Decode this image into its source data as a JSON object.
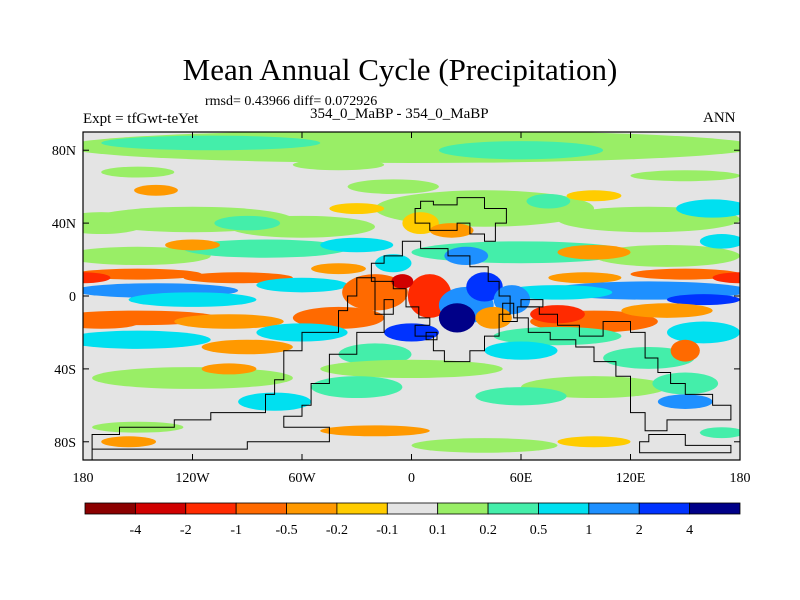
{
  "title": "Mean Annual Cycle (Precipitation)",
  "stats": "rmsd= 0.43966 diff= 0.072926",
  "left_label": "Expt = tfGwt-teYet",
  "subtitle": "354_0_MaBP - 354_0_MaBP",
  "season": "ANN",
  "chart_data": {
    "type": "heatmap",
    "title": "Mean Annual Cycle (Precipitation)",
    "x_axis": {
      "range": [
        -180,
        180
      ],
      "ticks": [
        -180,
        -120,
        -60,
        0,
        60,
        120,
        180
      ],
      "tick_labels": [
        "180",
        "120W",
        "60W",
        "0",
        "60E",
        "120E",
        "180"
      ]
    },
    "y_axis": {
      "range": [
        -90,
        90
      ],
      "ticks": [
        80,
        40,
        0,
        -40,
        -80
      ],
      "tick_labels": [
        "80N",
        "40N",
        "0",
        "40S",
        "80S"
      ]
    },
    "colorbar": {
      "levels": [
        "-4",
        "-2",
        "-1",
        "-0.5",
        "-0.2",
        "-0.1",
        "0.1",
        "0.2",
        "0.5",
        "1",
        "2",
        "4"
      ],
      "colors": [
        "#8b0000",
        "#d00000",
        "#ff2a00",
        "#ff6a00",
        "#ff9900",
        "#ffcc00",
        "#e4e4e4",
        "#99ee66",
        "#44eeaa",
        "#00e0f0",
        "#1e90ff",
        "#0033ff",
        "#000088"
      ]
    }
  }
}
